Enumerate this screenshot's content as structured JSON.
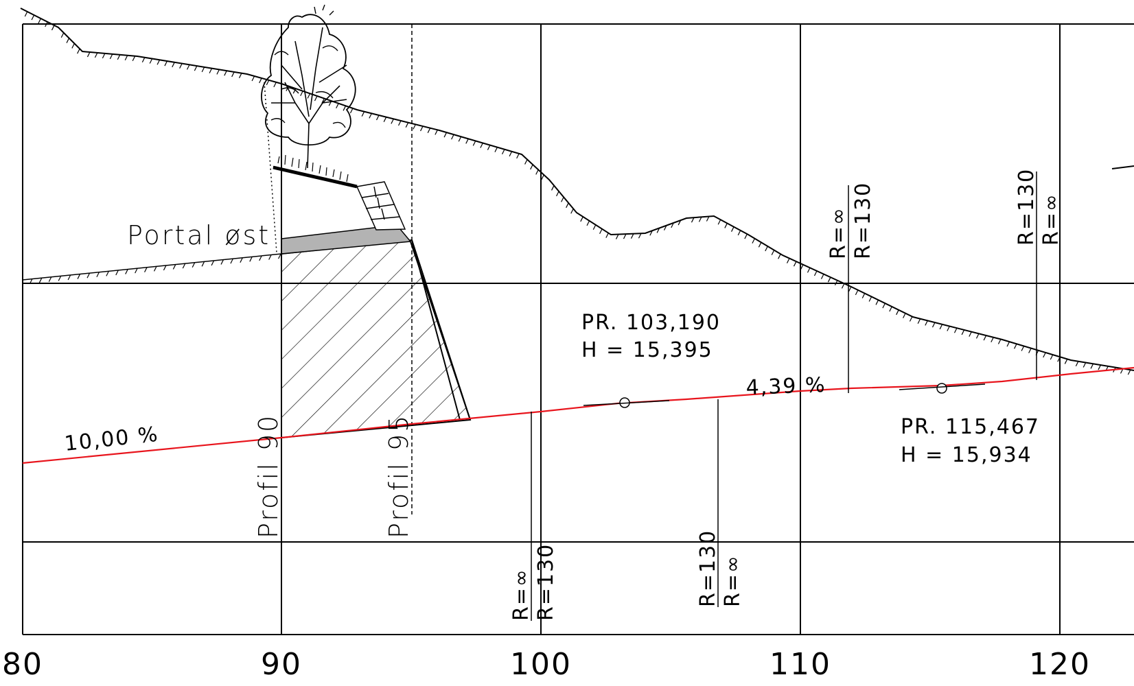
{
  "drawing": {
    "portal_label": "Portal øst",
    "profile_labels": [
      "Profil 90",
      "Profil 95"
    ],
    "grade_labels": [
      "10,00 %",
      "4,39 %"
    ],
    "vertical_points": [
      {
        "station_label": "PR. 103,190",
        "height_label": "H = 15,395"
      },
      {
        "station_label": "PR. 115,467",
        "height_label": "H = 15,934"
      }
    ],
    "curve_labels": [
      {
        "top": "R=∞",
        "bottom": "R=130"
      },
      {
        "top": "R=130",
        "bottom": "R=∞"
      },
      {
        "top": "R=∞",
        "bottom": "R=130"
      },
      {
        "top": "R=130",
        "bottom": "R=∞"
      }
    ],
    "x_axis_ticks": [
      "80",
      "90",
      "100",
      "110",
      "120"
    ],
    "colors": {
      "alignment": "#e8141c",
      "lines": "#000000",
      "wall": "#b3b3b3"
    },
    "icons": [
      "tree-icon",
      "retaining-wall-blocks-icon"
    ]
  }
}
